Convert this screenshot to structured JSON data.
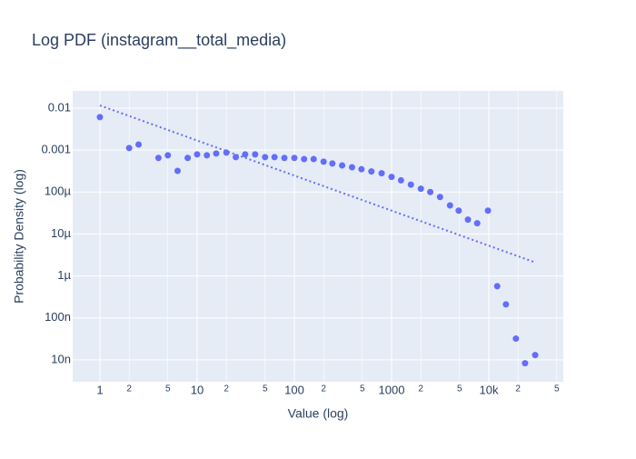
{
  "chart_data": {
    "type": "scatter",
    "title": "Log PDF (instagram__total_media)",
    "x_label": "Value (log)",
    "y_label": "Probability Density (log)",
    "log_x": true,
    "log_y": true,
    "grid": true,
    "xlim": [
      0.525,
      58400
    ],
    "ylim": [
      3e-09,
      0.0258
    ],
    "xticks": [
      1,
      2,
      5,
      10,
      {
        "value": 20,
        "label": "2"
      },
      {
        "value": 50,
        "label": "5"
      },
      100,
      {
        "value": 200,
        "label": "2"
      },
      {
        "value": 500,
        "label": "5"
      },
      1000,
      {
        "value": 2000,
        "label": "2"
      },
      {
        "value": 5000,
        "label": "5"
      },
      {
        "value": 10000,
        "label": "10k"
      },
      {
        "value": 20000,
        "label": "2"
      },
      {
        "value": 50000,
        "label": "5"
      }
    ],
    "yticks": [
      0.01,
      0.001,
      {
        "value": 0.0001,
        "label": "100µ"
      },
      {
        "value": 1e-05,
        "label": "10µ"
      },
      {
        "value": 1e-06,
        "label": "1µ"
      },
      {
        "value": 1e-07,
        "label": "100n"
      },
      {
        "value": 1e-08,
        "label": "10n"
      }
    ],
    "series": [
      {
        "mode": "markers",
        "color": "#636efa",
        "x": [
          1,
          2,
          2.5,
          4,
          5,
          6.3,
          8,
          10,
          12.6,
          15.7,
          20,
          25,
          31.2,
          39.5,
          50,
          62.5,
          79,
          100,
          126,
          158,
          200,
          246,
          310,
          392,
          490,
          620,
          790,
          1000,
          1250,
          1580,
          2000,
          2500,
          3150,
          3990,
          4900,
          6100,
          7600,
          9800,
          12200,
          15000,
          19000,
          23600,
          30000
        ],
        "values": [
          0.0061,
          0.00112,
          0.00136,
          0.00065,
          0.00075,
          0.00032,
          0.00065,
          0.00079,
          0.00075,
          0.00083,
          0.00087,
          0.00068,
          0.00079,
          0.00079,
          0.00068,
          0.00068,
          0.00065,
          0.00065,
          0.00061,
          0.00061,
          0.00053,
          0.00048,
          0.00043,
          0.00039,
          0.00035,
          0.00031,
          0.00028,
          0.00023,
          0.00019,
          0.00015,
          0.00012,
          0.0001,
          7.6e-05,
          4.8e-05,
          3.6e-05,
          2.2e-05,
          1.8e-05,
          3.6e-05,
          5.7e-07,
          2.1e-07,
          3.2e-08,
          8.3e-09,
          1.3e-08
        ]
      },
      {
        "mode": "lines",
        "dash": "dot",
        "color": "#636efa",
        "x": [
          1,
          30000
        ],
        "values": [
          0.0116,
          2.1e-06
        ]
      }
    ]
  }
}
